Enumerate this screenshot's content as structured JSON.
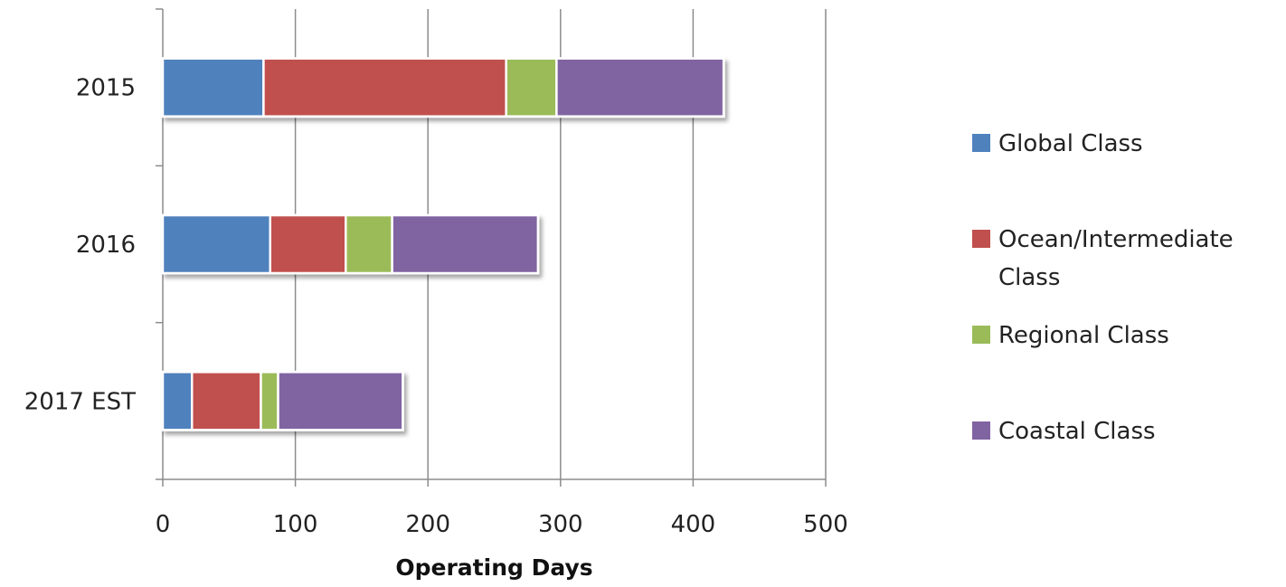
{
  "chart_data": {
    "type": "bar",
    "orientation": "horizontal",
    "stacked": true,
    "categories": [
      "2015",
      "2016",
      "2017 EST"
    ],
    "series": [
      {
        "name": "Global Class",
        "color": "#4F81BD",
        "values": [
          76,
          81,
          22
        ]
      },
      {
        "name": "Ocean/Intermediate Class",
        "color": "#C0504D",
        "values": [
          183,
          57,
          52
        ]
      },
      {
        "name": "Regional Class",
        "color": "#9BBB59",
        "values": [
          38,
          35,
          13
        ]
      },
      {
        "name": "Coastal Class",
        "color": "#8064A2",
        "values": [
          126,
          110,
          94
        ]
      }
    ],
    "legend": {
      "position": "right",
      "entries": [
        {
          "lines": [
            "Global Class"
          ]
        },
        {
          "lines": [
            "Ocean/Intermediate",
            "Class"
          ]
        },
        {
          "lines": [
            "Regional Class"
          ]
        },
        {
          "lines": [
            "Coastal Class"
          ]
        }
      ]
    },
    "xlabel": "Operating Days",
    "ylabel": "",
    "title": "",
    "xlim": [
      0,
      500
    ],
    "xticks": [
      0,
      100,
      200,
      300,
      400,
      500
    ],
    "grid": "vertical"
  }
}
